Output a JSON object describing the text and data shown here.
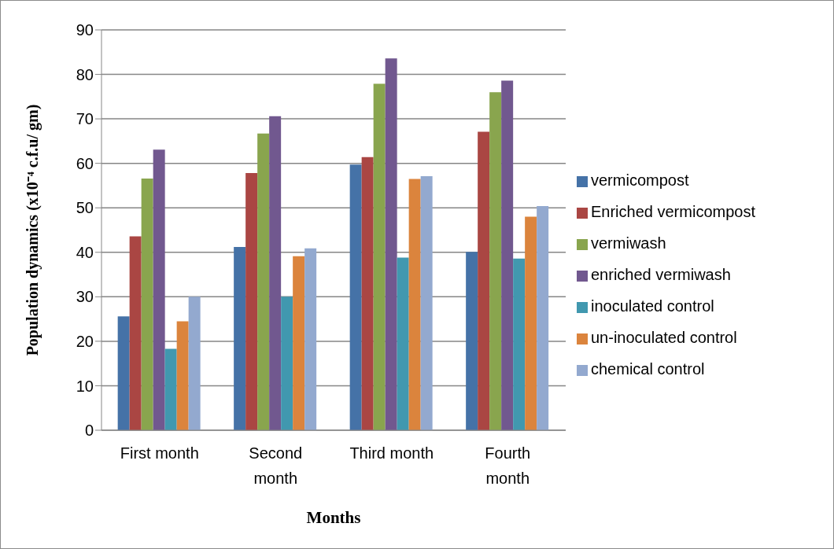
{
  "chart_data": {
    "type": "bar",
    "xlabel": "Months",
    "ylabel": "Population dynamics (x10⁻⁴ c.f.u/ gm)",
    "categories": [
      "First month",
      "Second month",
      "Third month",
      "Fourth month"
    ],
    "series": [
      {
        "name": "vermicompost",
        "color": "#4572a7",
        "values": [
          25.6,
          41.2,
          59.7,
          40.1
        ]
      },
      {
        "name": "Enriched vermicompost",
        "color": "#aa4643",
        "values": [
          43.6,
          57.8,
          61.4,
          67.1
        ]
      },
      {
        "name": "vermiwash",
        "color": "#89a54e",
        "values": [
          56.6,
          66.7,
          77.9,
          76.0
        ]
      },
      {
        "name": "enriched vermiwash",
        "color": "#71588f",
        "values": [
          63.1,
          70.6,
          83.6,
          78.6
        ]
      },
      {
        "name": "inoculated control",
        "color": "#4198af",
        "values": [
          18.3,
          30.0,
          38.8,
          38.6
        ]
      },
      {
        "name": "un-inoculated control",
        "color": "#db843d",
        "values": [
          24.5,
          39.1,
          56.5,
          48.0
        ]
      },
      {
        "name": "chemical control",
        "color": "#93a9cf",
        "values": [
          30.0,
          40.9,
          57.1,
          50.4
        ]
      }
    ],
    "ylim": [
      0,
      90
    ],
    "yticks": [
      0,
      10,
      20,
      30,
      40,
      50,
      60,
      70,
      80,
      90
    ],
    "grid": "y",
    "legend": "right"
  }
}
